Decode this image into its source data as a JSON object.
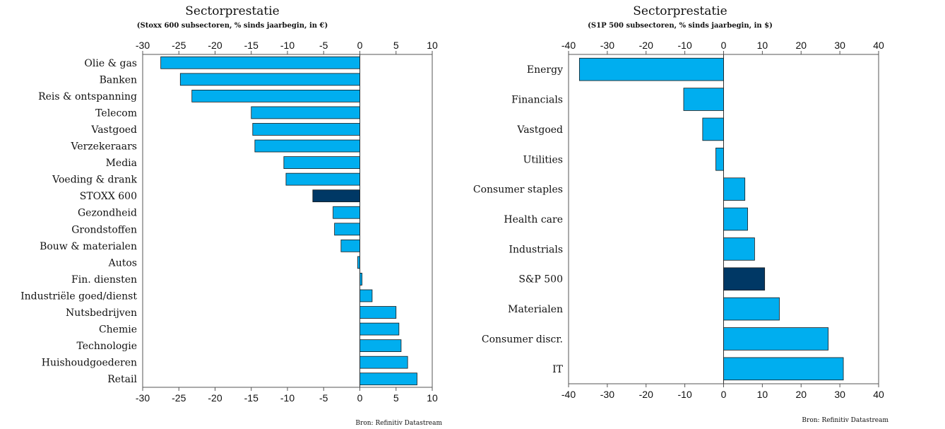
{
  "colors": {
    "bar": "#00aeef",
    "highlight": "#003865",
    "edge": "#1a1a1a"
  },
  "chart_data": [
    {
      "type": "bar",
      "orientation": "horizontal",
      "title": "Sectorprestatie",
      "subtitle": "(Stoxx 600 subsectoren, % sinds jaarbegin, in €)",
      "source": "Bron: Refinitiv Datastream",
      "xlim": [
        -30,
        10
      ],
      "xticks": [
        -30,
        -25,
        -20,
        -15,
        -10,
        -5,
        0,
        5,
        10
      ],
      "grid": false,
      "highlight": "STOXX 600",
      "categories": [
        "Olie & gas",
        "Banken",
        "Reis & ontspanning",
        "Telecom",
        "Vastgoed",
        "Verzekeraars",
        "Media",
        "Voeding & drank",
        "STOXX 600",
        "Gezondheid",
        "Grondstoffen",
        "Bouw & materialen",
        "Autos",
        "Fin. diensten",
        "Industriële goed/dienst",
        "Nutsbedrijven",
        "Chemie",
        "Technologie",
        "Huishoudgoederen",
        "Retail"
      ],
      "values": [
        -27.5,
        -24.8,
        -23.2,
        -15.0,
        -14.8,
        -14.5,
        -10.5,
        -10.2,
        -6.5,
        -3.7,
        -3.5,
        -2.6,
        -0.3,
        0.3,
        1.7,
        5.0,
        5.4,
        5.7,
        6.6,
        7.9
      ]
    },
    {
      "type": "bar",
      "orientation": "horizontal",
      "title": "Sectorprestatie",
      "subtitle": "(S1P 500 subsectoren, % sinds jaarbegin, in $)",
      "source": "Bron: Refinitiv Datastream",
      "xlim": [
        -40,
        40
      ],
      "xticks": [
        -40,
        -30,
        -20,
        -10,
        0,
        10,
        20,
        30,
        40
      ],
      "grid": false,
      "highlight": "S&P 500",
      "categories": [
        "Energy",
        "Financials",
        "Vastgoed",
        "Utilities",
        "Consumer staples",
        "Health care",
        "Industrials",
        "S&P 500",
        "Materialen",
        "Consumer discr.",
        "IT"
      ],
      "values": [
        -37.2,
        -10.3,
        -5.4,
        -2.0,
        5.5,
        6.2,
        8.0,
        10.6,
        14.4,
        27.0,
        30.9
      ]
    }
  ]
}
